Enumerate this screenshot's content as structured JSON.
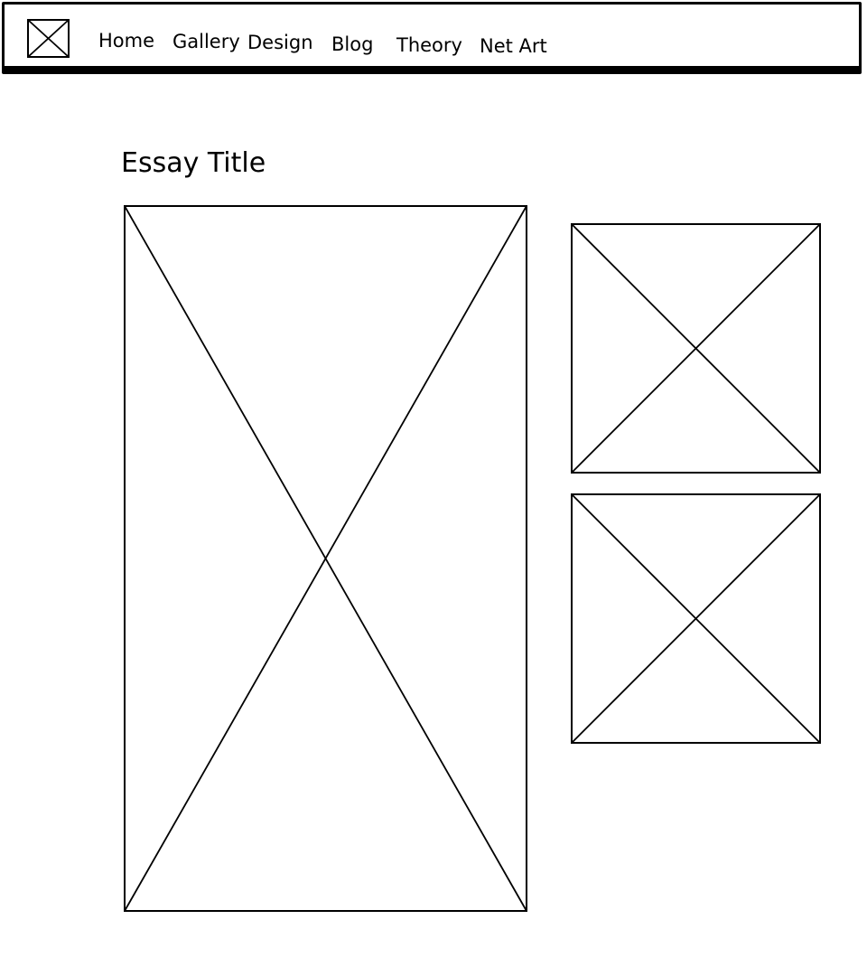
{
  "header": {
    "logo_icon": "image-placeholder-icon",
    "nav": {
      "home": "Home",
      "gallery": "Gallery",
      "design": "Design",
      "blog": "Blog",
      "theory": "Theory",
      "net_art": "Net Art"
    }
  },
  "main": {
    "essay_title": "Essay Title",
    "images": {
      "main_icon": "image-placeholder-icon",
      "side_1_icon": "image-placeholder-icon",
      "side_2_icon": "image-placeholder-icon"
    }
  },
  "colors": {
    "stroke": "#000000",
    "background": "#ffffff"
  }
}
